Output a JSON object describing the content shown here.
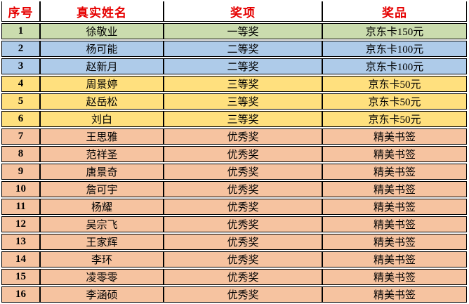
{
  "table": {
    "columns": [
      "序号",
      "真实姓名",
      "奖项",
      "奖品"
    ],
    "rows": [
      {
        "no": "1",
        "name": "徐敬业",
        "award": "一等奖",
        "prize": "京东卡150元",
        "tier": "first"
      },
      {
        "no": "2",
        "name": "杨可能",
        "award": "二等奖",
        "prize": "京东卡100元",
        "tier": "second"
      },
      {
        "no": "3",
        "name": "赵新月",
        "award": "二等奖",
        "prize": "京东卡100元",
        "tier": "second"
      },
      {
        "no": "4",
        "name": "周景婷",
        "award": "三等奖",
        "prize": "京东卡50元",
        "tier": "third"
      },
      {
        "no": "5",
        "name": "赵岳松",
        "award": "三等奖",
        "prize": "京东卡50元",
        "tier": "third"
      },
      {
        "no": "6",
        "name": "刘白",
        "award": "三等奖",
        "prize": "京东卡50元",
        "tier": "third"
      },
      {
        "no": "7",
        "name": "王思雅",
        "award": "优秀奖",
        "prize": "精美书签",
        "tier": "excellence"
      },
      {
        "no": "8",
        "name": "范祥圣",
        "award": "优秀奖",
        "prize": "精美书签",
        "tier": "excellence"
      },
      {
        "no": "9",
        "name": "唐景奇",
        "award": "优秀奖",
        "prize": "精美书签",
        "tier": "excellence"
      },
      {
        "no": "10",
        "name": "詹可宇",
        "award": "优秀奖",
        "prize": "精美书签",
        "tier": "excellence"
      },
      {
        "no": "11",
        "name": "杨耀",
        "award": "优秀奖",
        "prize": "精美书签",
        "tier": "excellence"
      },
      {
        "no": "12",
        "name": "吴宗飞",
        "award": "优秀奖",
        "prize": "精美书签",
        "tier": "excellence"
      },
      {
        "no": "13",
        "name": "王家辉",
        "award": "优秀奖",
        "prize": "精美书签",
        "tier": "excellence"
      },
      {
        "no": "14",
        "name": "李环",
        "award": "优秀奖",
        "prize": "精美书签",
        "tier": "excellence"
      },
      {
        "no": "15",
        "name": "凌零零",
        "award": "优秀奖",
        "prize": "精美书签",
        "tier": "excellence"
      },
      {
        "no": "16",
        "name": "李涵硕",
        "award": "优秀奖",
        "prize": "精美书签",
        "tier": "excellence"
      }
    ]
  },
  "colors": {
    "header_text": "#e60000",
    "grid_line": "#000000",
    "tiers": {
      "first": "#cbdcae",
      "second": "#aecbe9",
      "third": "#ffe07e",
      "excellence": "#f6c3a0"
    }
  }
}
